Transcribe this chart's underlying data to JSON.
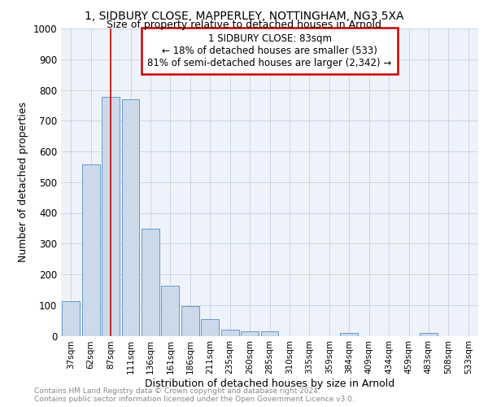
{
  "title_line1": "1, SIDBURY CLOSE, MAPPERLEY, NOTTINGHAM, NG3 5XA",
  "title_line2": "Size of property relative to detached houses in Arnold",
  "xlabel": "Distribution of detached houses by size in Arnold",
  "ylabel": "Number of detached properties",
  "categories": [
    "37sqm",
    "62sqm",
    "87sqm",
    "111sqm",
    "136sqm",
    "161sqm",
    "186sqm",
    "211sqm",
    "235sqm",
    "260sqm",
    "285sqm",
    "310sqm",
    "335sqm",
    "359sqm",
    "384sqm",
    "409sqm",
    "434sqm",
    "459sqm",
    "483sqm",
    "508sqm",
    "533sqm"
  ],
  "values": [
    113,
    557,
    778,
    770,
    348,
    163,
    97,
    54,
    20,
    14,
    14,
    0,
    0,
    0,
    9,
    0,
    0,
    0,
    9,
    0,
    0
  ],
  "bar_color": "#ccd9ea",
  "bar_edge_color": "#6699cc",
  "property_line_x": 2.0,
  "annotation_title": "1 SIDBURY CLOSE: 83sqm",
  "annotation_line1": "← 18% of detached houses are smaller (533)",
  "annotation_line2": "81% of semi-detached houses are larger (2,342) →",
  "annotation_box_color": "#ffffff",
  "annotation_box_edge_color": "#cc0000",
  "vline_color": "#cc0000",
  "ylim": [
    0,
    1000
  ],
  "yticks": [
    0,
    100,
    200,
    300,
    400,
    500,
    600,
    700,
    800,
    900,
    1000
  ],
  "grid_color": "#c8d0e0",
  "background_color": "#eef2fa",
  "footer_line1": "Contains HM Land Registry data © Crown copyright and database right 2024.",
  "footer_line2": "Contains public sector information licensed under the Open Government Licence v3.0.",
  "footer_color": "#888888"
}
